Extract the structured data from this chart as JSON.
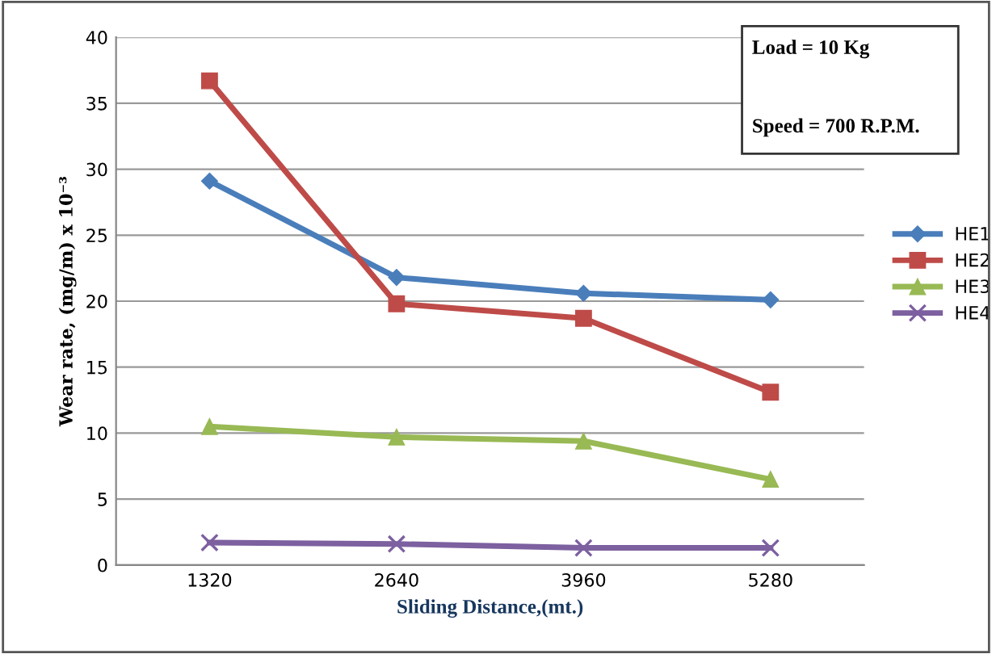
{
  "chart_data": {
    "type": "line",
    "xlabel": "Sliding Distance,(mt.)",
    "ylabel": "Wear rate, (mg/m) x 10⁻³",
    "categories": [
      "1320",
      "2640",
      "3960",
      "5280"
    ],
    "series": [
      {
        "name": "HE1",
        "color": "#4a7ebb",
        "marker": "diamond",
        "values": [
          29.1,
          21.8,
          20.6,
          20.1
        ]
      },
      {
        "name": "HE2",
        "color": "#be4b48",
        "marker": "square",
        "values": [
          36.7,
          19.8,
          18.7,
          13.1
        ]
      },
      {
        "name": "HE3",
        "color": "#98b954",
        "marker": "triangle",
        "values": [
          10.5,
          9.7,
          9.4,
          6.5
        ]
      },
      {
        "name": "HE4",
        "color": "#7d60a0",
        "marker": "cross",
        "values": [
          1.7,
          1.6,
          1.3,
          1.3
        ]
      }
    ],
    "ylim": [
      0,
      40
    ],
    "yticks": [
      0,
      5,
      10,
      15,
      20,
      25,
      30,
      35,
      40
    ],
    "grid": "y",
    "legend": "right",
    "annotations": [
      "Load = 10 Kg",
      "Speed = 700 R.P.M."
    ]
  }
}
